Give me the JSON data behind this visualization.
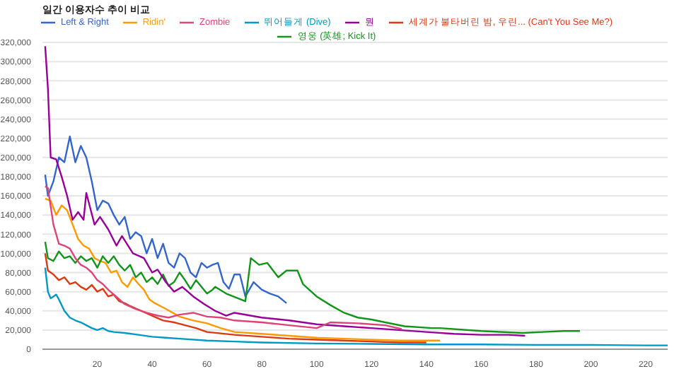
{
  "chart_data": {
    "type": "line",
    "title": "일간 이용자수 추이 비교",
    "legend": "top",
    "grid": "y",
    "marker": "none",
    "line_style": "solid",
    "xlim": [
      0,
      228
    ],
    "xticks": [
      20,
      40,
      60,
      80,
      100,
      120,
      140,
      160,
      180,
      200,
      220
    ],
    "ylim": [
      0,
      320000
    ],
    "yticks": [
      {
        "value": 0,
        "label": "0"
      },
      {
        "value": 20000,
        "label": "20,000"
      },
      {
        "value": 40000,
        "label": "40,000"
      },
      {
        "value": 60000,
        "label": "60,000"
      },
      {
        "value": 80000,
        "label": "80,000"
      },
      {
        "value": 100000,
        "label": "100,000"
      },
      {
        "value": 120000,
        "label": "120,000"
      },
      {
        "value": 140000,
        "label": "140,000"
      },
      {
        "value": 160000,
        "label": "160,000"
      },
      {
        "value": 180000,
        "label": "180,000"
      },
      {
        "value": 200000,
        "label": "200,000"
      },
      {
        "value": 220000,
        "label": "220,000"
      },
      {
        "value": 240000,
        "label": "240,000"
      },
      {
        "value": 260000,
        "label": "260,000"
      },
      {
        "value": 280000,
        "label": "280,000"
      },
      {
        "value": 300000,
        "label": "300,000"
      },
      {
        "value": 320000,
        "label": "320,000"
      }
    ],
    "series": [
      {
        "name": "Left & Right",
        "color": "#3366cc",
        "x": [
          1,
          2,
          4,
          6,
          8,
          10,
          12,
          14,
          16,
          18,
          20,
          22,
          24,
          26,
          28,
          30,
          32,
          34,
          36,
          38,
          40,
          42,
          44,
          46,
          48,
          50,
          52,
          54,
          56,
          58,
          60,
          62,
          64,
          66,
          68,
          70,
          72,
          74,
          77,
          80,
          83,
          86,
          89
        ],
        "values": [
          182000,
          160000,
          175000,
          200000,
          195000,
          222000,
          195000,
          212000,
          200000,
          175000,
          145000,
          155000,
          152000,
          140000,
          130000,
          138000,
          115000,
          122000,
          118000,
          100000,
          115000,
          95000,
          110000,
          90000,
          85000,
          100000,
          95000,
          80000,
          75000,
          90000,
          85000,
          88000,
          90000,
          70000,
          63000,
          78000,
          78000,
          55000,
          70000,
          62000,
          58000,
          55000,
          48000
        ]
      },
      {
        "name": "세계가 불타버린 밤, 우린... (Can't You See Me?)",
        "color": "#dc3912",
        "x": [
          1,
          2,
          4,
          6,
          8,
          10,
          12,
          14,
          16,
          18,
          20,
          22,
          24,
          26,
          28,
          30,
          32,
          36,
          40,
          44,
          48,
          52,
          56,
          60,
          70,
          80,
          90,
          100,
          110,
          120,
          130,
          140
        ],
        "values": [
          100000,
          82000,
          78000,
          72000,
          75000,
          68000,
          70000,
          65000,
          62000,
          67000,
          60000,
          63000,
          55000,
          57000,
          50000,
          48000,
          45000,
          40000,
          35000,
          30000,
          28000,
          25000,
          22000,
          18000,
          15000,
          13000,
          11000,
          10000,
          9000,
          8000,
          7000,
          7000
        ]
      },
      {
        "name": "Ridin'",
        "color": "#ff9900",
        "x": [
          1,
          3,
          5,
          7,
          9,
          11,
          13,
          15,
          17,
          19,
          21,
          23,
          25,
          27,
          29,
          31,
          33,
          35,
          37,
          39,
          41,
          45,
          50,
          55,
          60,
          65,
          70,
          80,
          90,
          100,
          110,
          120,
          130,
          140,
          145
        ],
        "values": [
          157000,
          155000,
          140000,
          150000,
          145000,
          130000,
          115000,
          108000,
          105000,
          95000,
          92000,
          90000,
          80000,
          82000,
          70000,
          65000,
          75000,
          68000,
          62000,
          52000,
          48000,
          42000,
          34000,
          30000,
          27000,
          22000,
          18000,
          16000,
          14000,
          12000,
          11000,
          10000,
          9000,
          9000,
          9000
        ]
      },
      {
        "name": "영웅 (英雄; Kick It)",
        "color": "#109618",
        "x": [
          1,
          2,
          4,
          6,
          8,
          10,
          12,
          14,
          16,
          18,
          20,
          22,
          24,
          26,
          28,
          30,
          32,
          34,
          36,
          38,
          40,
          42,
          44,
          46,
          48,
          50,
          52,
          54,
          56,
          58,
          60,
          62,
          63,
          67,
          74,
          76,
          79,
          82,
          86,
          89,
          93,
          95,
          100,
          105,
          110,
          115,
          120,
          125,
          132,
          142,
          145,
          160,
          175,
          190,
          196
        ],
        "values": [
          112000,
          95000,
          92000,
          102000,
          95000,
          97000,
          90000,
          97000,
          92000,
          95000,
          85000,
          97000,
          90000,
          97000,
          88000,
          82000,
          88000,
          75000,
          80000,
          70000,
          75000,
          68000,
          78000,
          66000,
          70000,
          80000,
          72000,
          63000,
          72000,
          65000,
          58000,
          62000,
          65000,
          58000,
          50000,
          95000,
          88000,
          90000,
          75000,
          82000,
          82000,
          68000,
          55000,
          46000,
          38000,
          33000,
          31000,
          28000,
          24000,
          22000,
          22000,
          19000,
          17000,
          19000,
          19000
        ]
      },
      {
        "name": "뭔",
        "color": "#990099",
        "x": [
          1,
          2,
          3,
          5,
          7,
          9,
          11,
          13,
          15,
          16,
          19,
          21,
          24,
          27,
          29,
          33,
          37,
          40,
          42,
          45,
          48,
          51,
          55,
          59,
          63,
          67,
          70,
          80,
          90,
          100,
          110,
          120,
          130,
          140,
          150,
          160,
          170,
          176
        ],
        "values": [
          316000,
          272000,
          200000,
          198000,
          180000,
          160000,
          135000,
          143000,
          135000,
          163000,
          130000,
          138000,
          125000,
          108000,
          118000,
          100000,
          95000,
          80000,
          83000,
          70000,
          60000,
          65000,
          55000,
          47000,
          40000,
          35000,
          38000,
          33000,
          30000,
          26000,
          24000,
          22000,
          20000,
          18000,
          16000,
          15000,
          15000,
          14000
        ]
      },
      {
        "name": "뛰어들게 (Dive)",
        "color": "#0099c6",
        "x": [
          1,
          2,
          3,
          5,
          6,
          8,
          10,
          12,
          14,
          16,
          18,
          20,
          22,
          24,
          26,
          30,
          35,
          40,
          45,
          50,
          60,
          70,
          80,
          100,
          120,
          140,
          160,
          180,
          200,
          220,
          228
        ],
        "values": [
          85000,
          60000,
          53000,
          57000,
          52000,
          40000,
          33000,
          30000,
          28000,
          25000,
          22000,
          20000,
          22000,
          19000,
          18000,
          17000,
          15000,
          13000,
          12000,
          11000,
          9000,
          8000,
          7000,
          6000,
          5500,
          5000,
          5000,
          4500,
          4500,
          4000,
          4000
        ]
      },
      {
        "name": "Zombie",
        "color": "#dd4477",
        "x": [
          1,
          2,
          4,
          6,
          8,
          10,
          12,
          14,
          16,
          18,
          20,
          22,
          24,
          26,
          28,
          30,
          34,
          38,
          42,
          46,
          50,
          55,
          60,
          65,
          70,
          80,
          90,
          100,
          105,
          115,
          125,
          131
        ],
        "values": [
          170000,
          168000,
          130000,
          110000,
          108000,
          105000,
          95000,
          88000,
          85000,
          80000,
          72000,
          68000,
          62000,
          57000,
          52000,
          47000,
          42000,
          38000,
          35000,
          33000,
          36000,
          38000,
          34000,
          33000,
          30000,
          28000,
          25000,
          22000,
          28000,
          27000,
          25000,
          21000
        ]
      }
    ]
  }
}
